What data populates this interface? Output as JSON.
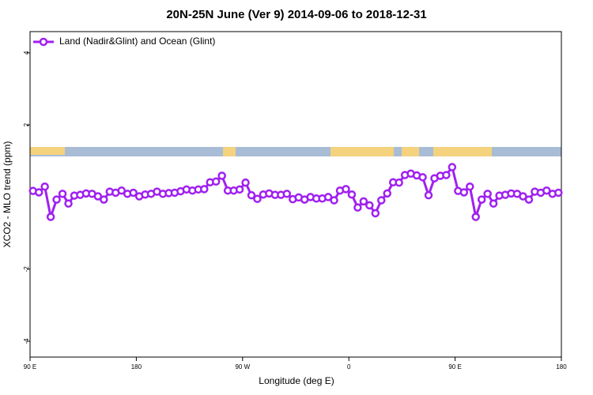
{
  "chart_data": {
    "type": "line",
    "title": "20N-25N June (Ver 9)   2014-09-06 to 2018-12-31",
    "x_label": "Longitude (deg E)",
    "y_label": "XCO2 - MLO trend (ppm)",
    "xlim": [
      90,
      540
    ],
    "xticks": [
      {
        "value": 90,
        "label": "90 E"
      },
      {
        "value": 180,
        "label": "180"
      },
      {
        "value": 270,
        "label": "90 W"
      },
      {
        "value": 360,
        "label": "0"
      },
      {
        "value": 450,
        "label": "90 E"
      },
      {
        "value": 540,
        "label": "180"
      }
    ],
    "ylim": [
      -4.44,
      4.59
    ],
    "yticks": [
      -4,
      -2,
      2,
      4
    ],
    "legend": "upper left",
    "x": [
      92.5,
      97.5,
      102.5,
      107.5,
      112.5,
      117.5,
      122.5,
      127.5,
      132.5,
      137.5,
      142.5,
      147.5,
      152.5,
      157.5,
      162.5,
      167.5,
      172.5,
      177.5,
      182.5,
      187.5,
      192.5,
      197.5,
      202.5,
      207.5,
      212.5,
      217.5,
      222.5,
      227.5,
      232.5,
      237.5,
      242.5,
      247.5,
      252.5,
      257.5,
      262.5,
      267.5,
      272.5,
      277.5,
      282.5,
      287.5,
      292.5,
      297.5,
      302.5,
      307.5,
      312.5,
      317.5,
      322.5,
      327.5,
      332.5,
      337.5,
      342.5,
      347.5,
      352.5,
      357.5,
      362.5,
      367.5,
      372.5,
      377.5,
      382.5,
      387.5,
      392.5,
      397.5,
      402.5,
      407.5,
      412.5,
      417.5,
      422.5,
      427.5,
      432.5,
      437.5,
      442.5,
      447.5,
      452.5,
      457.5,
      462.5,
      467.5,
      472.5,
      477.5,
      482.5,
      487.5,
      492.5,
      497.5,
      502.5,
      507.5,
      512.5,
      517.5,
      522.5,
      527.5,
      532.5,
      537.5
    ],
    "series": [
      {
        "name": "Land (Nadir&Glint) and Ocean (Glint)",
        "color": "#a020f0",
        "values": [
          0.17,
          0.13,
          0.29,
          -0.55,
          -0.07,
          0.09,
          -0.18,
          0.04,
          0.06,
          0.1,
          0.09,
          0.02,
          -0.07,
          0.15,
          0.12,
          0.18,
          0.09,
          0.12,
          0.02,
          0.07,
          0.09,
          0.15,
          0.09,
          0.11,
          0.12,
          0.16,
          0.21,
          0.18,
          0.21,
          0.22,
          0.41,
          0.43,
          0.59,
          0.18,
          0.18,
          0.21,
          0.4,
          0.05,
          -0.05,
          0.07,
          0.1,
          0.06,
          0.06,
          0.09,
          -0.06,
          -0.01,
          -0.07,
          0.0,
          -0.04,
          -0.04,
          0.0,
          -0.09,
          0.18,
          0.22,
          0.07,
          -0.29,
          -0.12,
          -0.23,
          -0.45,
          -0.09,
          0.1,
          0.41,
          0.4,
          0.61,
          0.65,
          0.6,
          0.55,
          0.05,
          0.52,
          0.59,
          0.61,
          0.83,
          0.17,
          0.13,
          0.29,
          -0.55,
          -0.07,
          0.09,
          -0.18,
          0.04,
          0.06,
          0.1,
          0.09,
          0.02,
          -0.07,
          0.15,
          0.12,
          0.18,
          0.09,
          0.12
        ]
      }
    ]
  }
}
